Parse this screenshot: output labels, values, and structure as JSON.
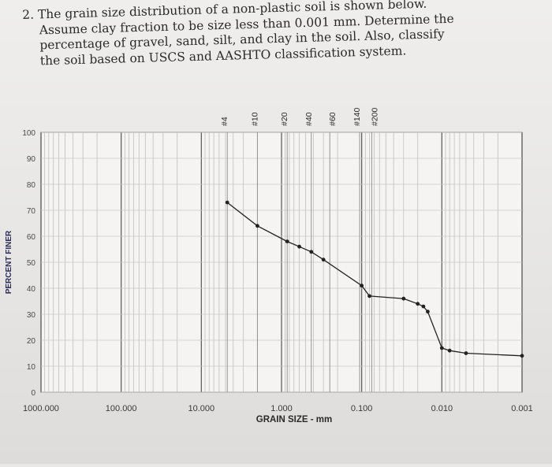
{
  "question": {
    "lines": [
      "2. The grain size distribution of a non-plastic soil is shown below.",
      "Assume clay fraction to be size less than 0.001 mm. Determine the",
      "percentage of gravel, sand, silt, and clay in the soil. Also, classify",
      "the soil based on USCS and AASHTO classification system."
    ]
  },
  "chart_data": {
    "type": "line",
    "xlabel": "GRAIN SIZE - mm",
    "ylabel": "PERCENT FINER",
    "x_scale": "log",
    "x_reversed": true,
    "xlim": [
      1000,
      0.001
    ],
    "ylim": [
      0,
      100
    ],
    "x_tick_labels": [
      "1000.000",
      "100.000",
      "10.000",
      "1.000",
      "0.100",
      "0.010",
      "0.001"
    ],
    "x_tick_values": [
      1000,
      100,
      10,
      1,
      0.1,
      0.01,
      0.001
    ],
    "y_tick_labels": [
      "0",
      "10",
      "20",
      "30",
      "40",
      "50",
      "60",
      "70",
      "80",
      "90",
      "100"
    ],
    "y_tick_values": [
      0,
      10,
      20,
      30,
      40,
      50,
      60,
      70,
      80,
      90,
      100
    ],
    "sieves": [
      {
        "label": "#4",
        "size": 4.75
      },
      {
        "label": "#10",
        "size": 2.0
      },
      {
        "label": "#20",
        "size": 0.85
      },
      {
        "label": "#40",
        "size": 0.425
      },
      {
        "label": "#60",
        "size": 0.25
      },
      {
        "label": "#140",
        "size": 0.106
      },
      {
        "label": "#200",
        "size": 0.075
      }
    ],
    "grid": true,
    "series": [
      {
        "x": [
          4.75,
          2.0,
          0.85,
          0.6,
          0.425,
          0.3,
          0.1,
          0.08,
          0.03,
          0.02,
          0.017,
          0.015,
          0.01,
          0.008,
          0.005,
          0.001
        ],
        "y": [
          73,
          64,
          58,
          56,
          54,
          51,
          41,
          37,
          36,
          34,
          33,
          31,
          17,
          16,
          15,
          14
        ],
        "color": "#222222"
      }
    ]
  }
}
